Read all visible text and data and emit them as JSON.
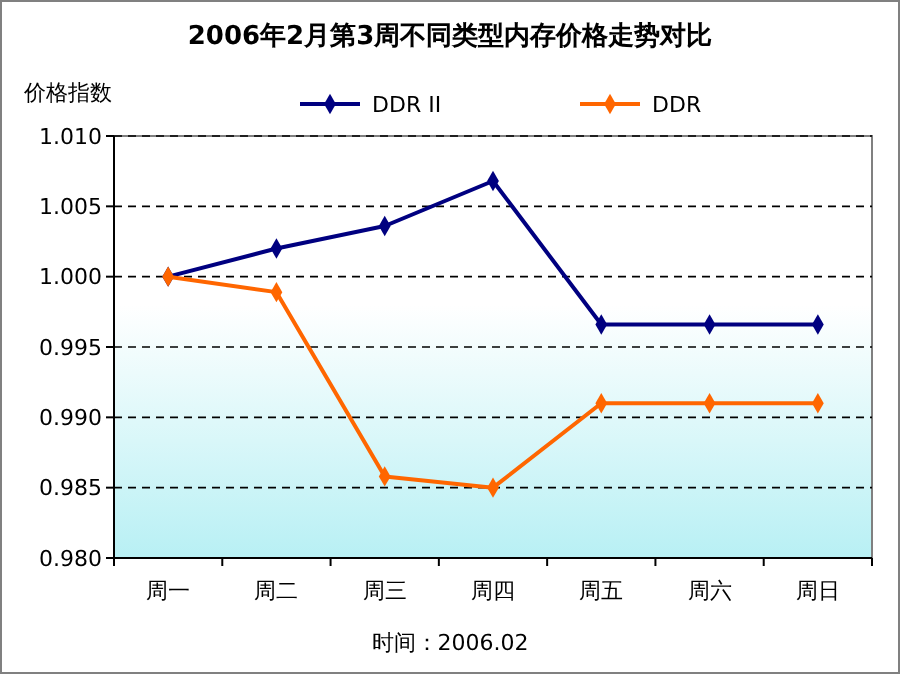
{
  "chart_data": {
    "type": "line",
    "title": "2006年2月第3周不同类型内存价格走势对比",
    "ylabel": "价格指数",
    "annotations": [
      "时间：2006.02"
    ],
    "categories": [
      "周一",
      "周二",
      "周三",
      "周四",
      "周五",
      "周六",
      "周日"
    ],
    "series": [
      {
        "name": "DDR II",
        "color": "#000080",
        "values": [
          1.0,
          1.002,
          1.0036,
          1.0068,
          0.9966,
          0.9966,
          0.9966
        ]
      },
      {
        "name": "DDR",
        "color": "#ff6600",
        "values": [
          1.0,
          0.9989,
          0.9858,
          0.985,
          0.991,
          0.991,
          0.991
        ]
      }
    ],
    "ylim": [
      0.98,
      1.01
    ],
    "yticks": [
      {
        "value": 0.98,
        "label": "0.980"
      },
      {
        "value": 0.985,
        "label": "0.985"
      },
      {
        "value": 0.99,
        "label": "0.990"
      },
      {
        "value": 0.995,
        "label": "0.995"
      },
      {
        "value": 1,
        "label": "1.000"
      },
      {
        "value": 1.005,
        "label": "1.005"
      },
      {
        "value": 1.01,
        "label": "1.010"
      }
    ],
    "grid": "y",
    "legend": "top",
    "marker": "diamond",
    "line_style": "solid"
  }
}
